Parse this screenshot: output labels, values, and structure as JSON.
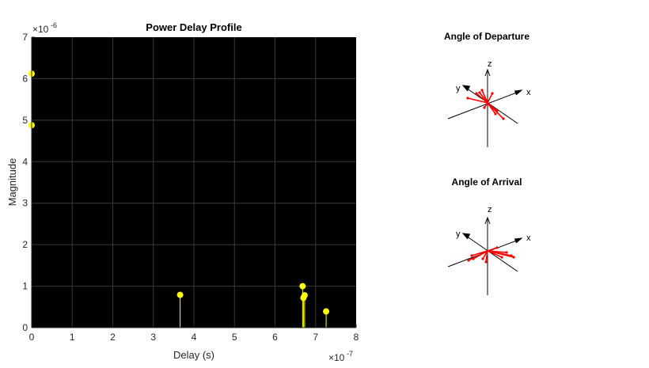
{
  "chart_data": [
    {
      "type": "stem",
      "title": "Power Delay Profile",
      "xlabel": "Delay (s)",
      "ylabel": "Magnitude",
      "x_exponent": "-7",
      "y_exponent": "-6",
      "xlim": [
        0,
        8
      ],
      "ylim": [
        0,
        7
      ],
      "x_ticks": [
        "0",
        "1",
        "2",
        "3",
        "4",
        "5",
        "6",
        "7",
        "8"
      ],
      "y_ticks": [
        "0",
        "1",
        "2",
        "3",
        "4",
        "5",
        "6",
        "7"
      ],
      "grid": true,
      "background": "#000000",
      "marker_color": "#ffff00",
      "series": [
        {
          "x": [
            0,
            0,
            3.66,
            6.68,
            6.7,
            6.73,
            7.26
          ],
          "y": [
            6.12,
            4.88,
            0.79,
            1.0,
            0.72,
            0.78,
            0.39
          ]
        }
      ]
    },
    {
      "type": "3d-arrows",
      "title": "Angle of Departure",
      "axis_labels": {
        "x": "x",
        "y": "y",
        "z": "z"
      },
      "ray_color": "#ff0000"
    },
    {
      "type": "3d-arrows",
      "title": "Angle of Arrival",
      "axis_labels": {
        "x": "x",
        "y": "y",
        "z": "z"
      },
      "ray_color": "#ff0000"
    }
  ]
}
